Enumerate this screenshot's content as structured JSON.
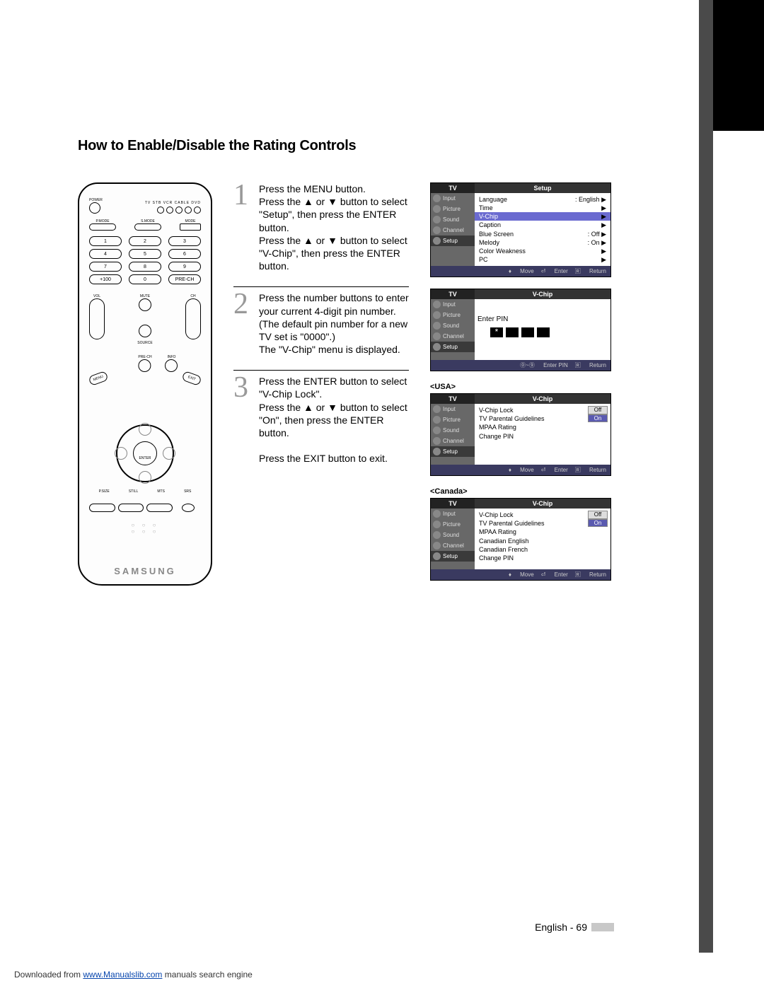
{
  "title": "How to Enable/Disable the Rating Controls",
  "remote": {
    "power": "POWER",
    "devices": "TV  STB  VCR  CABLE  DVD",
    "modeLabels": [
      "P.MODE",
      "S.MODE",
      "MODE"
    ],
    "nums": [
      "1",
      "2",
      "3",
      "4",
      "5",
      "6",
      "7",
      "8",
      "9",
      "+100",
      "0",
      "PRE-CH"
    ],
    "vol": "VOL",
    "ch": "CH",
    "mute": "MUTE",
    "source": "SOURCE",
    "prech": "PRE-CH",
    "info": "INFO",
    "menu": "MENU",
    "exit": "EXIT",
    "enter": "ENTER",
    "bottom4": [
      "P.SIZE",
      "STILL",
      "MTS",
      "SRS"
    ],
    "brand": "SAMSUNG"
  },
  "steps": [
    {
      "n": "1",
      "txt": "Press the MENU button.\nPress the ▲ or ▼ button to select \"Setup\", then press the ENTER button.\nPress the ▲ or ▼ button to select \"V-Chip\", then press the ENTER button."
    },
    {
      "n": "2",
      "txt": "Press the number buttons to enter your current 4-digit pin number.\n(The default pin number for a new TV set is \"0000\".)\nThe \"V-Chip\" menu is displayed."
    },
    {
      "n": "3",
      "txt": "Press the ENTER button to select \"V-Chip Lock\".\nPress the ▲ or ▼ button to select \"On\", then press the ENTER button.\n\nPress the EXIT button to exit."
    }
  ],
  "menus": {
    "sideTabs": [
      "Input",
      "Picture",
      "Sound",
      "Channel",
      "Setup"
    ],
    "footMove": "Move",
    "footEnter": "Enter",
    "footReturn": "Return",
    "footPin": "Enter PIN",
    "setup": {
      "tv": "TV",
      "title": "Setup",
      "rows": [
        {
          "k": "Language",
          "v": ": English",
          "a": "▶"
        },
        {
          "k": "Time",
          "v": "",
          "a": "▶"
        },
        {
          "k": "V-Chip",
          "v": "",
          "a": "▶",
          "hl": true
        },
        {
          "k": "Caption",
          "v": "",
          "a": "▶"
        },
        {
          "k": "Blue Screen",
          "v": ": Off",
          "a": "▶"
        },
        {
          "k": "Melody",
          "v": ": On",
          "a": "▶"
        },
        {
          "k": "Color Weakness",
          "v": "",
          "a": "▶"
        },
        {
          "k": "PC",
          "v": "",
          "a": "▶"
        }
      ]
    },
    "pin": {
      "tv": "TV",
      "title": "V-Chip",
      "label": "Enter PIN"
    },
    "usaLabel": "<USA>",
    "usa": {
      "tv": "TV",
      "title": "V-Chip",
      "rows": [
        {
          "k": "V-Chip Lock"
        },
        {
          "k": "TV Parental Guidelines"
        },
        {
          "k": "MPAA Rating"
        },
        {
          "k": "Change PIN"
        }
      ],
      "opts": [
        "Off",
        "On"
      ]
    },
    "canLabel": "<Canada>",
    "canada": {
      "tv": "TV",
      "title": "V-Chip",
      "rows": [
        {
          "k": "V-Chip Lock"
        },
        {
          "k": "TV Parental Guidelines"
        },
        {
          "k": "MPAA Rating"
        },
        {
          "k": "Canadian English"
        },
        {
          "k": "Canadian French"
        },
        {
          "k": "Change PIN"
        }
      ],
      "opts": [
        "Off",
        "On"
      ]
    }
  },
  "footer": {
    "lang": "English - 69"
  },
  "download": {
    "pre": "Downloaded from ",
    "link": "www.Manualslib.com",
    "post": " manuals search engine"
  }
}
